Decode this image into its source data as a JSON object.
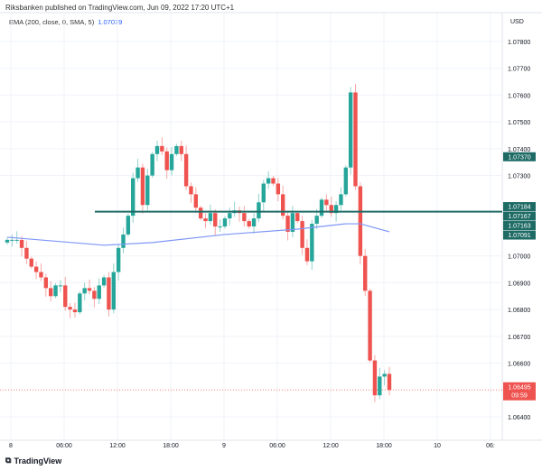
{
  "header": "Riksbanken published on TradingView.com, Jun 09, 2022 17:20 UTC+1",
  "indicator": {
    "label": "EMA (200, close, 0, SMA, 5)",
    "value": "1.07079",
    "color": "#2962ff"
  },
  "footer": {
    "brand": "TradingView"
  },
  "colors": {
    "up": "#26a69a",
    "down": "#ef5350",
    "hline": "#1e6b66",
    "ema": "#7e97f7"
  },
  "chart_data": {
    "type": "candlestick",
    "currency": "USD",
    "ylim": [
      1.0637,
      1.0785
    ],
    "yticks": [
      "1.07800",
      "1.07700",
      "1.07600",
      "1.07500",
      "1.07400",
      "1.07300",
      "1.07000",
      "1.06900",
      "1.06800",
      "1.06700",
      "1.06600",
      "1.06400"
    ],
    "xticks": [
      "8",
      "06:00",
      "12:00",
      "18:00",
      "9",
      "06:00",
      "12:00",
      "18:00",
      "10",
      "06:"
    ],
    "closes": [
      1.0706,
      1.0706,
      1.0706,
      1.0703,
      1.0699,
      1.0696,
      1.0694,
      1.0692,
      1.0688,
      1.0685,
      1.0689,
      1.0689,
      1.0681,
      1.068,
      1.0679,
      1.0686,
      1.0688,
      1.0687,
      1.0684,
      1.0689,
      1.0692,
      1.068,
      1.0694,
      1.0703,
      1.0708,
      1.0715,
      1.0729,
      1.0733,
      1.0719,
      1.073,
      1.0738,
      1.0741,
      1.0739,
      1.0732,
      1.0738,
      1.0741,
      1.0738,
      1.0726,
      1.0723,
      1.0718,
      1.0714,
      1.0713,
      1.0716,
      1.0711,
      1.0711,
      1.0714,
      1.0716,
      1.0717,
      1.0716,
      1.0713,
      1.0711,
      1.0714,
      1.072,
      1.0727,
      1.0729,
      1.0727,
      1.0723,
      1.0715,
      1.0709,
      1.0716,
      1.0713,
      1.0703,
      1.0698,
      1.0712,
      1.0715,
      1.0721,
      1.0719,
      1.0716,
      1.0719,
      1.0723,
      1.0733,
      1.0761,
      1.0726,
      1.07,
      1.0687,
      1.0661,
      1.0648,
      1.0655,
      1.0656,
      1.065
    ],
    "first_open": 1.0705,
    "ema": [
      [
        0,
        1.0707
      ],
      [
        20,
        1.0704
      ],
      [
        30,
        1.0705
      ],
      [
        45,
        1.0708
      ],
      [
        60,
        1.071
      ],
      [
        70,
        1.0712
      ],
      [
        73,
        1.0712
      ],
      [
        79,
        1.0709
      ]
    ],
    "hline": 1.07165,
    "labels": [
      {
        "text": "1.07370",
        "price": 1.0737,
        "kind": "teal"
      },
      {
        "text": "1.07184",
        "price": 1.07184,
        "kind": "teal"
      },
      {
        "text": "1.07167",
        "price": 1.07167,
        "kind": "teal"
      },
      {
        "text": "1.07163",
        "price": 1.07163,
        "kind": "teal"
      },
      {
        "text": "1.07091",
        "price": 1.07091,
        "kind": "teal"
      },
      {
        "text": "1.06495",
        "sub": "09:59",
        "price": 1.06495,
        "kind": "red"
      }
    ]
  }
}
